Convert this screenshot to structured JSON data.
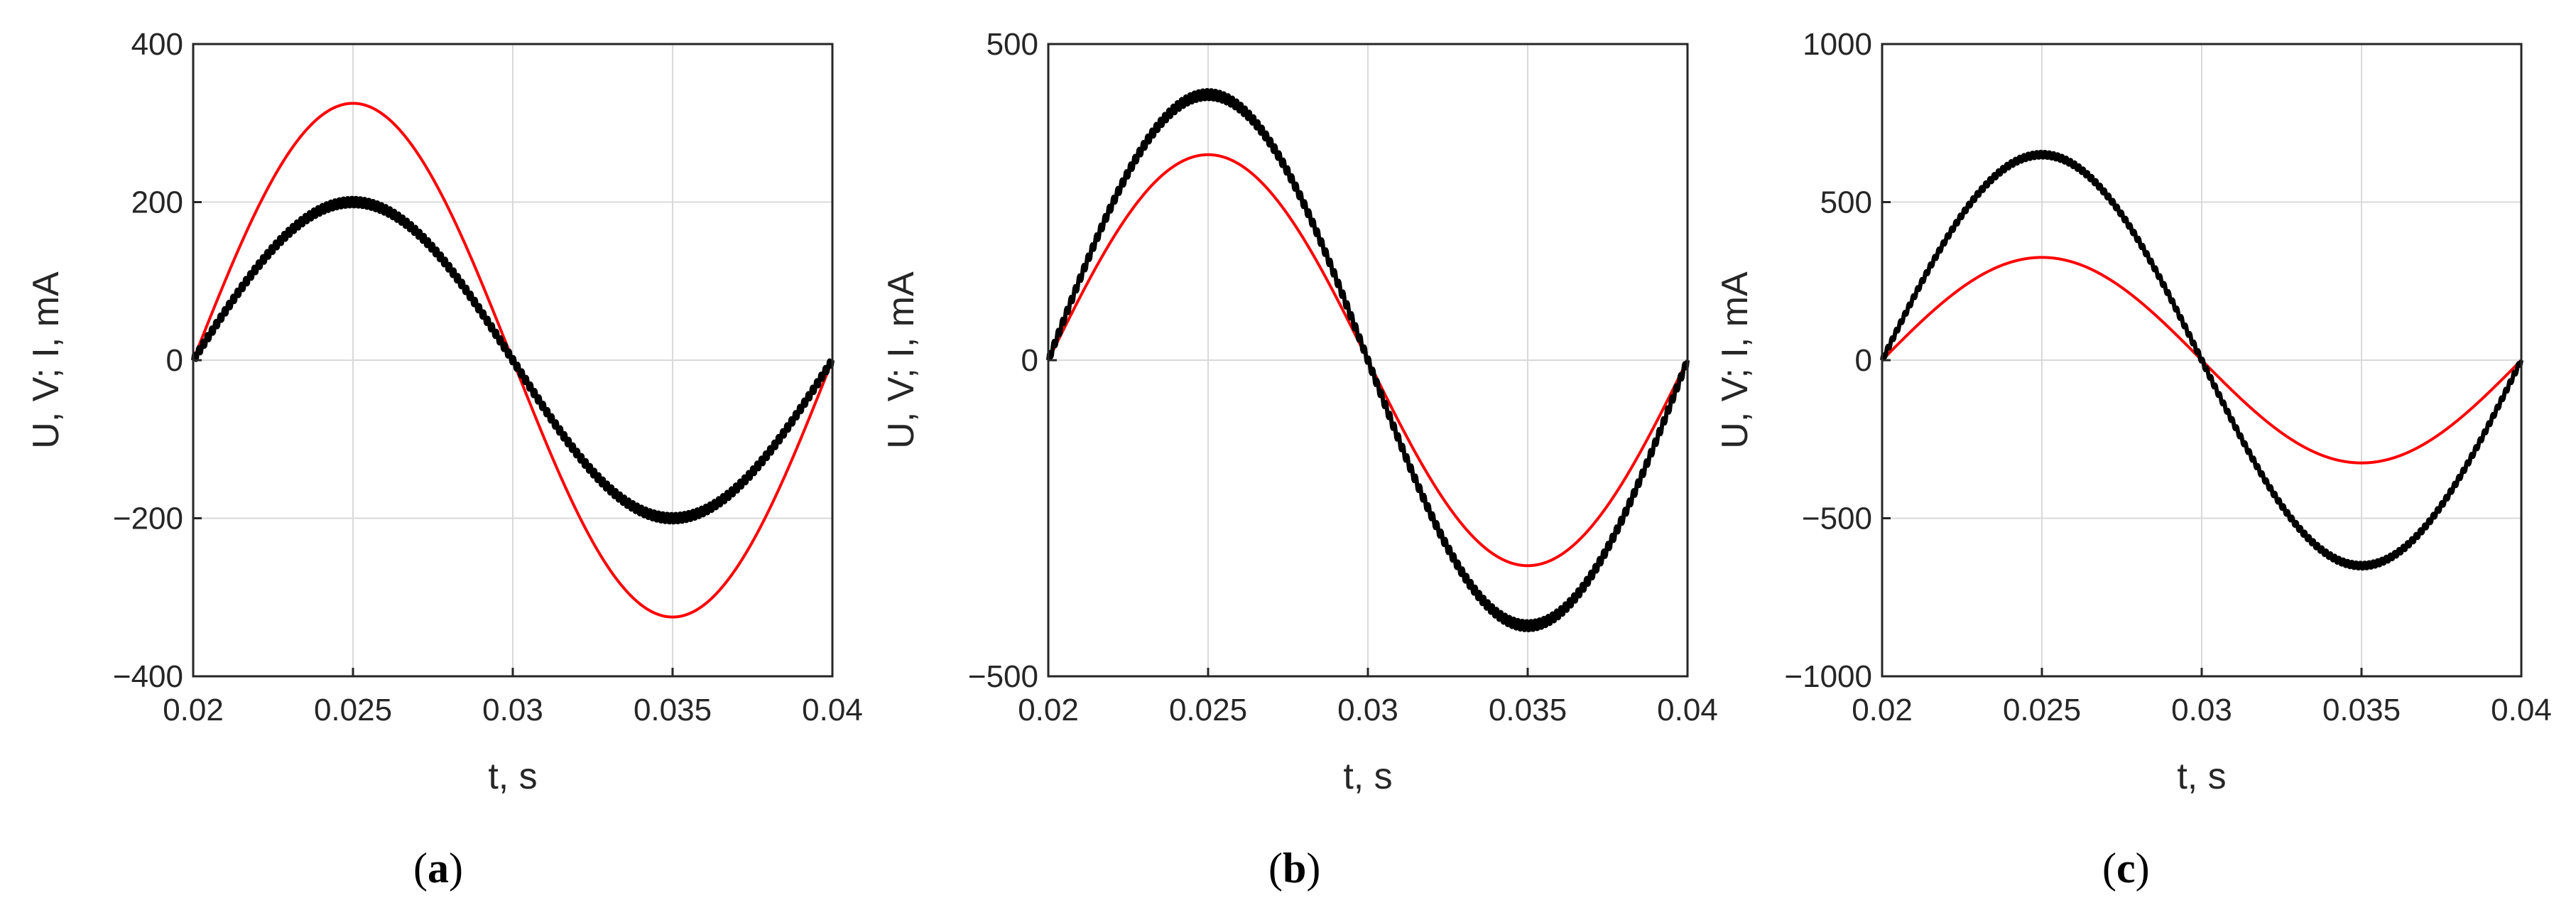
{
  "chart_data": [
    {
      "type": "line",
      "panel_label": "a",
      "xlabel": "t, s",
      "ylabel": "U, V; I, mA",
      "xlim": [
        0.02,
        0.04
      ],
      "ylim": [
        -400,
        400
      ],
      "xticks": [
        "0.02",
        "0.025",
        "0.03",
        "0.035",
        "0.04"
      ],
      "yticks": [
        "400",
        "200",
        "0",
        "−200",
        "−400"
      ],
      "ytick_values": [
        400,
        200,
        0,
        -200,
        -400
      ],
      "grid": true,
      "series": [
        {
          "color": "#ff0000",
          "amplitude": 325,
          "period": 0.02,
          "ripple": 0,
          "x": [
            0.02,
            0.025,
            0.03,
            0.035,
            0.04
          ],
          "values": [
            0,
            325,
            0,
            -325,
            0
          ]
        },
        {
          "color": "#000000",
          "amplitude": 200,
          "period": 0.02,
          "ripple": 6,
          "x": [
            0.02,
            0.025,
            0.03,
            0.035,
            0.04
          ],
          "values": [
            0,
            200,
            0,
            -200,
            0
          ]
        }
      ]
    },
    {
      "type": "line",
      "panel_label": "b",
      "xlabel": "t, s",
      "ylabel": "U, V; I, mA",
      "xlim": [
        0.02,
        0.04
      ],
      "ylim": [
        -500,
        500
      ],
      "xticks": [
        "0.02",
        "0.025",
        "0.03",
        "0.035",
        "0.04"
      ],
      "yticks": [
        "500",
        "0",
        "−500"
      ],
      "ytick_values": [
        500,
        0,
        -500
      ],
      "grid": true,
      "series": [
        {
          "color": "#ff0000",
          "amplitude": 325,
          "period": 0.02,
          "ripple": 0,
          "x": [
            0.02,
            0.025,
            0.03,
            0.035,
            0.04
          ],
          "values": [
            0,
            325,
            0,
            -325,
            0
          ]
        },
        {
          "color": "#000000",
          "amplitude": 420,
          "period": 0.02,
          "ripple": 8,
          "x": [
            0.02,
            0.025,
            0.03,
            0.035,
            0.04
          ],
          "values": [
            0,
            420,
            0,
            -420,
            0
          ]
        }
      ]
    },
    {
      "type": "line",
      "panel_label": "c",
      "xlabel": "t, s",
      "ylabel": "U, V; I, mA",
      "xlim": [
        0.02,
        0.04
      ],
      "ylim": [
        -1000,
        1000
      ],
      "xticks": [
        "0.02",
        "0.025",
        "0.03",
        "0.035",
        "0.04"
      ],
      "yticks": [
        "1000",
        "500",
        "0",
        "−500",
        "−1000"
      ],
      "ytick_values": [
        1000,
        500,
        0,
        -500,
        -1000
      ],
      "grid": true,
      "series": [
        {
          "color": "#ff0000",
          "amplitude": 325,
          "period": 0.02,
          "ripple": 0,
          "x": [
            0.02,
            0.025,
            0.03,
            0.035,
            0.04
          ],
          "values": [
            0,
            325,
            0,
            -325,
            0
          ]
        },
        {
          "color": "#000000",
          "amplitude": 650,
          "period": 0.02,
          "ripple": 10,
          "x": [
            0.02,
            0.025,
            0.03,
            0.035,
            0.04
          ],
          "values": [
            0,
            650,
            0,
            -650,
            0
          ]
        }
      ]
    }
  ]
}
